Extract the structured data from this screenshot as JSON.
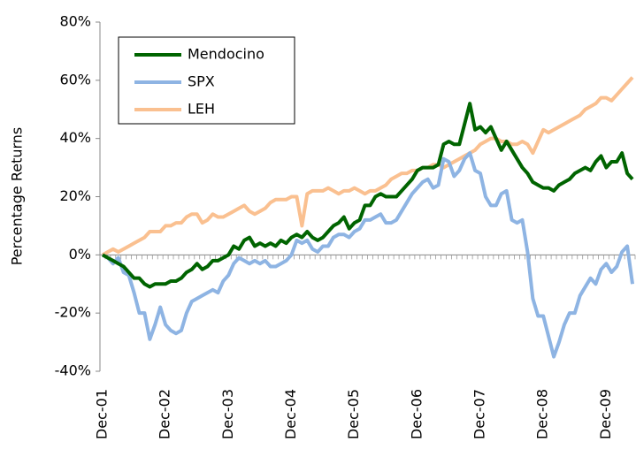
{
  "chart_data": {
    "type": "line",
    "y_label": "Percentage Returns",
    "categories": [
      "Dec-01",
      null,
      null,
      null,
      null,
      null,
      null,
      null,
      null,
      null,
      null,
      null,
      "Dec-02",
      null,
      null,
      null,
      null,
      null,
      null,
      null,
      null,
      null,
      null,
      null,
      "Dec-03",
      null,
      null,
      null,
      null,
      null,
      null,
      null,
      null,
      null,
      null,
      null,
      "Dec-04",
      null,
      null,
      null,
      null,
      null,
      null,
      null,
      null,
      null,
      null,
      null,
      "Dec-05",
      null,
      null,
      null,
      null,
      null,
      null,
      null,
      null,
      null,
      null,
      null,
      "Dec-06",
      null,
      null,
      null,
      null,
      null,
      null,
      null,
      null,
      null,
      null,
      null,
      "Dec-07",
      null,
      null,
      null,
      null,
      null,
      null,
      null,
      null,
      null,
      null,
      null,
      "Dec-08",
      null,
      null,
      null,
      null,
      null,
      null,
      null,
      null,
      null,
      null,
      null,
      "Dec-09",
      null,
      null,
      null,
      null,
      null
    ],
    "series": [
      {
        "name": "Mendocino",
        "color": "#006400",
        "values": [
          0,
          -1,
          -2,
          -3,
          -4,
          -6,
          -8,
          -8,
          -10,
          -11,
          -10,
          -10,
          -10,
          -9,
          -9,
          -8,
          -6,
          -5,
          -3,
          -5,
          -4,
          -2,
          -2,
          -1,
          0,
          3,
          2,
          5,
          6,
          3,
          4,
          3,
          4,
          3,
          5,
          4,
          6,
          7,
          6,
          8,
          6,
          5,
          6,
          8,
          10,
          11,
          13,
          9,
          11,
          12,
          17,
          17,
          20,
          21,
          20,
          20,
          20,
          22,
          24,
          26,
          29,
          30,
          30,
          30,
          31,
          38,
          39,
          38,
          38,
          45,
          52,
          43,
          44,
          42,
          44,
          40,
          36,
          39,
          36,
          33,
          30,
          28,
          25,
          24,
          23,
          23,
          22,
          24,
          25,
          26,
          28,
          29,
          30,
          29,
          32,
          34,
          30,
          32,
          32,
          35,
          28,
          26
        ]
      },
      {
        "name": "SPX",
        "color": "#8eb4e3",
        "values": [
          0,
          -1,
          -3,
          -1,
          -6,
          -7,
          -13,
          -20,
          -20,
          -29,
          -24,
          -18,
          -24,
          -26,
          -27,
          -26,
          -20,
          -16,
          -15,
          -14,
          -13,
          -12,
          -13,
          -9,
          -7,
          -3,
          -1,
          -2,
          -3,
          -2,
          -3,
          -2,
          -4,
          -4,
          -3,
          -2,
          0,
          5,
          4,
          5,
          2,
          1,
          3,
          3,
          6,
          7,
          7,
          6,
          8,
          9,
          12,
          12,
          13,
          14,
          11,
          11,
          12,
          15,
          18,
          21,
          23,
          25,
          26,
          23,
          24,
          33,
          32,
          27,
          29,
          33,
          35,
          29,
          28,
          20,
          17,
          17,
          21,
          22,
          12,
          11,
          12,
          1,
          -15,
          -21,
          -21,
          -28,
          -35,
          -30,
          -24,
          -20,
          -20,
          -14,
          -11,
          -8,
          -10,
          -5,
          -3,
          -6,
          -4,
          1,
          3,
          -10
        ]
      },
      {
        "name": "LEH",
        "color": "#fac090",
        "values": [
          0,
          1,
          2,
          1,
          2,
          3,
          4,
          5,
          6,
          8,
          8,
          8,
          10,
          10,
          11,
          11,
          13,
          14,
          14,
          11,
          12,
          14,
          13,
          13,
          14,
          15,
          16,
          17,
          15,
          14,
          15,
          16,
          18,
          19,
          19,
          19,
          20,
          20,
          10,
          21,
          22,
          22,
          22,
          23,
          22,
          21,
          22,
          22,
          23,
          22,
          21,
          22,
          22,
          23,
          24,
          26,
          27,
          28,
          28,
          29,
          29,
          30,
          30,
          31,
          31,
          30,
          31,
          32,
          33,
          34,
          35,
          36,
          38,
          39,
          40,
          40,
          39,
          39,
          38,
          38,
          39,
          38,
          35,
          39,
          43,
          42,
          43,
          44,
          45,
          46,
          47,
          48,
          50,
          51,
          52,
          54,
          54,
          53,
          55,
          57,
          59,
          61
        ]
      }
    ],
    "ylim": [
      -40,
      80
    ],
    "yticks": [
      {
        "value": -40,
        "label": "-40%"
      },
      {
        "value": -20,
        "label": "-20%"
      },
      {
        "value": 0,
        "label": "0%"
      },
      {
        "value": 20,
        "label": "20%"
      },
      {
        "value": 40,
        "label": "40%"
      },
      {
        "value": 60,
        "label": "60%"
      },
      {
        "value": 80,
        "label": "80%"
      }
    ],
    "legend": "upper left"
  }
}
